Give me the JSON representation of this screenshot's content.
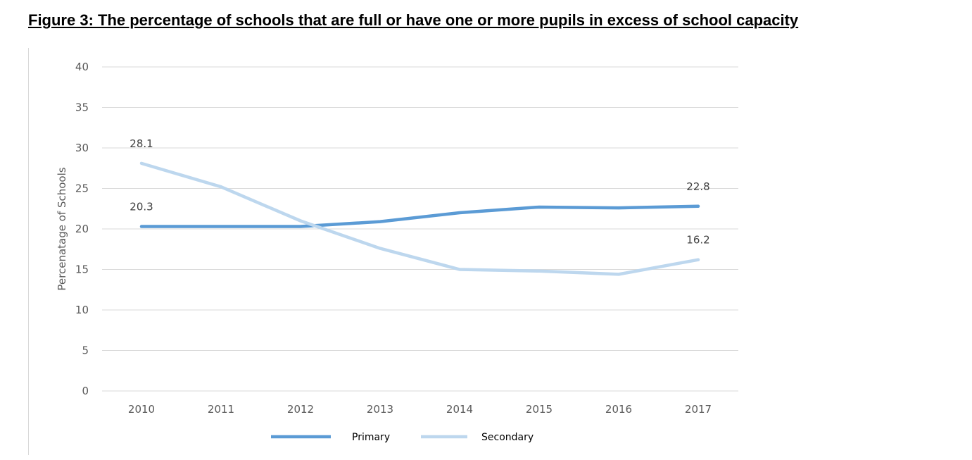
{
  "figure": {
    "title": "Figure 3: The percentage of schools that are full or have one or more pupils in excess of school capacity"
  },
  "chart_data": {
    "type": "line",
    "title": "",
    "xlabel": "",
    "ylabel": "Percenatage of Schools",
    "categories": [
      "2010",
      "2011",
      "2012",
      "2013",
      "2014",
      "2015",
      "2016",
      "2017"
    ],
    "ylim": [
      0,
      40
    ],
    "yticks": [
      0,
      5,
      10,
      15,
      20,
      25,
      30,
      35,
      40
    ],
    "grid": true,
    "legend_position": "bottom",
    "series": [
      {
        "name": "Primary",
        "color": "#5b9bd5",
        "values": [
          20.3,
          20.3,
          20.3,
          20.9,
          22.0,
          22.7,
          22.6,
          22.8
        ],
        "data_labels": [
          {
            "index": 0,
            "text": "20.3"
          },
          {
            "index": 7,
            "text": "22.8"
          }
        ]
      },
      {
        "name": "Secondary",
        "color": "#bdd7ee",
        "values": [
          28.1,
          25.2,
          21.0,
          17.6,
          15.0,
          14.8,
          14.4,
          16.2
        ],
        "data_labels": [
          {
            "index": 0,
            "text": "28.1"
          },
          {
            "index": 7,
            "text": "16.2"
          }
        ]
      }
    ]
  }
}
